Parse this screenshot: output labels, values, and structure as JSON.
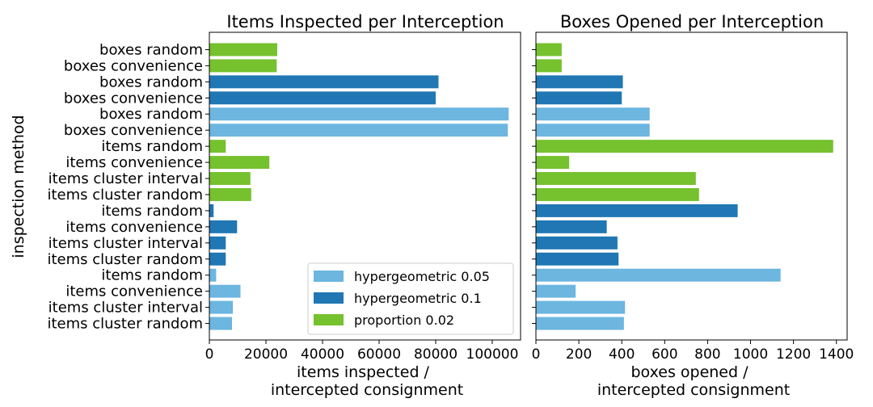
{
  "colors": {
    "hypergeometric_0_05": "#6cb6e0",
    "hypergeometric_0_1": "#2077b4",
    "proportion_0_02": "#75c12e"
  },
  "chart_data": [
    {
      "type": "bar",
      "orientation": "horizontal",
      "title": "Items Inspected per Interception",
      "ylabel": "inspection method",
      "xlabel_lines": [
        "items inspected /",
        "intercepted consignment"
      ],
      "xlim": [
        0,
        110000
      ],
      "xticks": [
        0,
        20000,
        40000,
        60000,
        80000,
        100000
      ],
      "categories": [
        "items cluster random",
        "items cluster interval",
        "items convenience",
        "items random",
        "items cluster random",
        "items cluster interval",
        "items convenience",
        "items random",
        "items cluster random",
        "items cluster interval",
        "items convenience",
        "items random",
        "boxes convenience",
        "boxes random",
        "boxes convenience",
        "boxes random",
        "boxes convenience",
        "boxes random"
      ],
      "bar_series": [
        "hypergeometric 0.05",
        "hypergeometric 0.05",
        "hypergeometric 0.05",
        "hypergeometric 0.05",
        "hypergeometric 0.1",
        "hypergeometric 0.1",
        "hypergeometric 0.1",
        "hypergeometric 0.1",
        "proportion 0.02",
        "proportion 0.02",
        "proportion 0.02",
        "proportion 0.02",
        "hypergeometric 0.05",
        "hypergeometric 0.05",
        "hypergeometric 0.1",
        "hypergeometric 0.1",
        "proportion 0.02",
        "proportion 0.02"
      ],
      "values": [
        8000,
        8300,
        11000,
        2400,
        5800,
        5800,
        9800,
        1500,
        14800,
        14500,
        21200,
        5800,
        105500,
        105800,
        80000,
        81000,
        23800,
        24000
      ],
      "legend": {
        "placement": "lower-right",
        "entries": [
          "hypergeometric 0.05",
          "hypergeometric 0.1",
          "proportion 0.02"
        ]
      }
    },
    {
      "type": "bar",
      "orientation": "horizontal",
      "title": "Boxes Opened per Interception",
      "xlabel_lines": [
        "boxes opened /",
        "intercepted consignment"
      ],
      "xlim": [
        0,
        1450
      ],
      "xticks": [
        0,
        200,
        400,
        600,
        800,
        1000,
        1200,
        1400
      ],
      "categories": [
        "items cluster random",
        "items cluster interval",
        "items convenience",
        "items random",
        "items cluster random",
        "items cluster interval",
        "items convenience",
        "items random",
        "items cluster random",
        "items cluster interval",
        "items convenience",
        "items random",
        "boxes convenience",
        "boxes random",
        "boxes convenience",
        "boxes random",
        "boxes convenience",
        "boxes random"
      ],
      "bar_series": [
        "hypergeometric 0.05",
        "hypergeometric 0.05",
        "hypergeometric 0.05",
        "hypergeometric 0.05",
        "hypergeometric 0.1",
        "hypergeometric 0.1",
        "hypergeometric 0.1",
        "hypergeometric 0.1",
        "proportion 0.02",
        "proportion 0.02",
        "proportion 0.02",
        "proportion 0.02",
        "hypergeometric 0.05",
        "hypergeometric 0.05",
        "hypergeometric 0.1",
        "hypergeometric 0.1",
        "proportion 0.02",
        "proportion 0.02"
      ],
      "values": [
        410,
        415,
        185,
        1140,
        385,
        380,
        330,
        940,
        760,
        745,
        155,
        1385,
        530,
        530,
        400,
        405,
        120,
        120
      ]
    }
  ]
}
